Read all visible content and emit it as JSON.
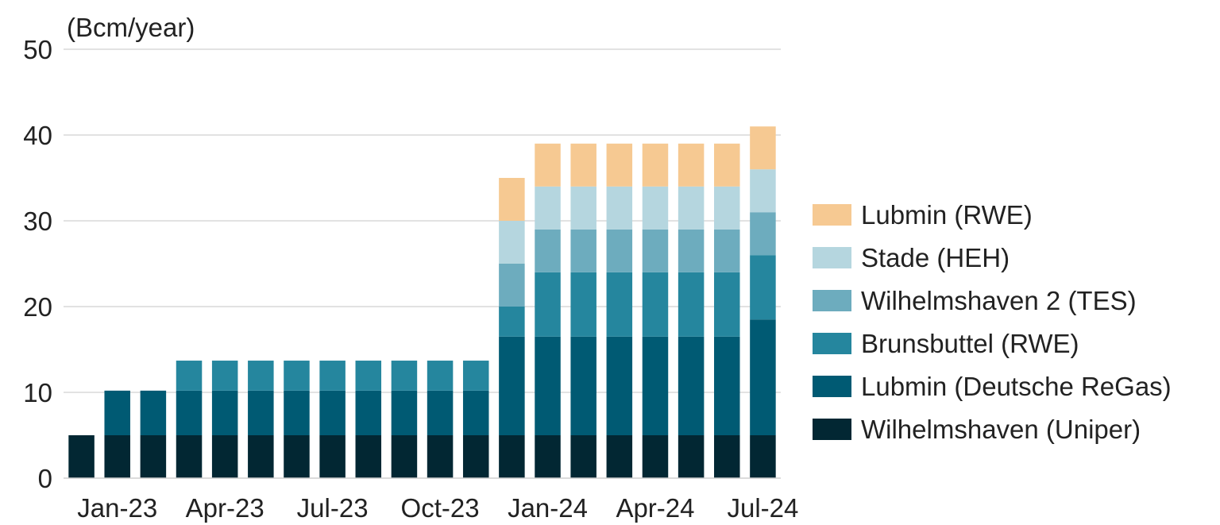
{
  "chart_data": {
    "type": "bar",
    "stacked": true,
    "title": "",
    "ylabel": "(Bcm/year)",
    "xlabel": "",
    "ylim": [
      0,
      50
    ],
    "yticks": [
      0,
      10,
      20,
      30,
      40,
      50
    ],
    "grid": true,
    "legend_position": "right",
    "categories": [
      "Dec-22",
      "Jan-23",
      "Feb-23",
      "Mar-23",
      "Apr-23",
      "May-23",
      "Jun-23",
      "Jul-23",
      "Aug-23",
      "Sep-23",
      "Oct-23",
      "Nov-23",
      "Dec-23",
      "Jan-24",
      "Feb-24",
      "Mar-24",
      "Apr-24",
      "May-24",
      "Jun-24",
      "Jul-24"
    ],
    "xtick_labels": [
      {
        "index": 1,
        "label": "Jan-23"
      },
      {
        "index": 4,
        "label": "Apr-23"
      },
      {
        "index": 7,
        "label": "Jul-23"
      },
      {
        "index": 10,
        "label": "Oct-23"
      },
      {
        "index": 13,
        "label": "Jan-24"
      },
      {
        "index": 16,
        "label": "Apr-24"
      },
      {
        "index": 19,
        "label": "Jul-24"
      }
    ],
    "series": [
      {
        "name": "Wilhelmshaven (Uniper)",
        "color": "#022733",
        "values": [
          5,
          5,
          5,
          5,
          5,
          5,
          5,
          5,
          5,
          5,
          5,
          5,
          5,
          5,
          5,
          5,
          5,
          5,
          5,
          5
        ]
      },
      {
        "name": "Lubmin (Deutsche ReGas)",
        "color": "#005a73",
        "values": [
          0,
          5.2,
          5.2,
          5.2,
          5.2,
          5.2,
          5.2,
          5.2,
          5.2,
          5.2,
          5.2,
          5.2,
          11.5,
          11.5,
          11.5,
          11.5,
          11.5,
          11.5,
          11.5,
          13.5
        ]
      },
      {
        "name": "Brunsbuttel (RWE)",
        "color": "#25869e",
        "values": [
          0,
          0,
          0,
          3.5,
          3.5,
          3.5,
          3.5,
          3.5,
          3.5,
          3.5,
          3.5,
          3.5,
          3.5,
          7.5,
          7.5,
          7.5,
          7.5,
          7.5,
          7.5,
          7.5
        ]
      },
      {
        "name": "Wilhelmshaven 2 (TES)",
        "color": "#6dacbe",
        "values": [
          0,
          0,
          0,
          0,
          0,
          0,
          0,
          0,
          0,
          0,
          0,
          0,
          5,
          5,
          5,
          5,
          5,
          5,
          5,
          5
        ]
      },
      {
        "name": "Stade (HEH)",
        "color": "#b5d6df",
        "values": [
          0,
          0,
          0,
          0,
          0,
          0,
          0,
          0,
          0,
          0,
          0,
          0,
          5,
          5,
          5,
          5,
          5,
          5,
          5,
          5
        ]
      },
      {
        "name": "Lubmin (RWE)",
        "color": "#f6c992",
        "values": [
          0,
          0,
          0,
          0,
          0,
          0,
          0,
          0,
          0,
          0,
          0,
          0,
          5,
          5,
          5,
          5,
          5,
          5,
          5,
          5
        ]
      }
    ],
    "legend_order": [
      "Lubmin (RWE)",
      "Stade (HEH)",
      "Wilhelmshaven 2 (TES)",
      "Brunsbuttel (RWE)",
      "Lubmin (Deutsche ReGas)",
      "Wilhelmshaven (Uniper)"
    ]
  }
}
